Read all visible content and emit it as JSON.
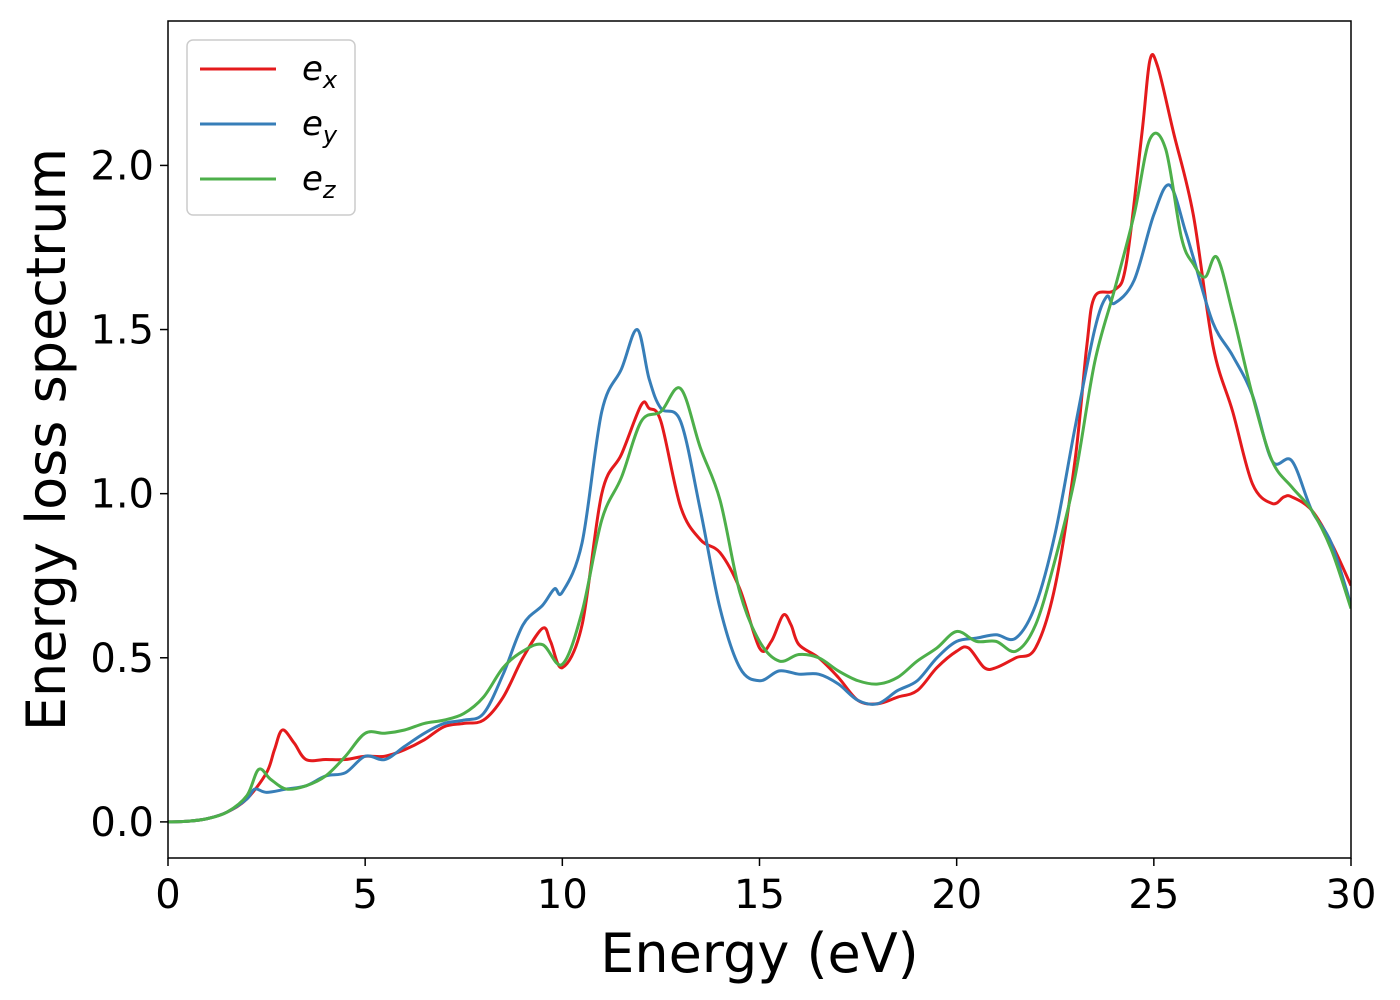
{
  "chart_data": {
    "type": "line",
    "xlabel": "Energy (eV)",
    "ylabel": "Energy loss spectrum",
    "xlim": [
      0,
      30
    ],
    "ylim": [
      -0.11,
      2.44
    ],
    "xticks": [
      0,
      5,
      10,
      15,
      20,
      25,
      30
    ],
    "xtick_labels": [
      "0",
      "5",
      "10",
      "15",
      "20",
      "25",
      "30"
    ],
    "yticks": [
      0.0,
      0.5,
      1.0,
      1.5,
      2.0
    ],
    "ytick_labels": [
      "0.0",
      "0.5",
      "1.0",
      "1.5",
      "2.0"
    ],
    "grid": false,
    "legend_position": "top-left",
    "series": [
      {
        "name": "e",
        "subscript": "x",
        "color": "#e41a1c",
        "x": [
          0,
          0.5,
          1,
          1.5,
          2,
          2.5,
          2.7,
          2.9,
          3.2,
          3.5,
          4,
          4.5,
          5,
          5.5,
          6,
          6.5,
          7,
          7.5,
          8,
          8.5,
          9,
          9.5,
          9.7,
          10,
          10.5,
          11,
          11.5,
          12,
          12.2,
          12.5,
          13,
          13.5,
          14,
          14.5,
          15,
          15.3,
          15.6,
          15.8,
          16,
          16.5,
          17,
          17.5,
          18,
          18.5,
          19,
          19.5,
          20,
          20.3,
          20.7,
          21,
          21.5,
          22,
          22.5,
          23,
          23.3,
          23.5,
          24,
          24.3,
          24.7,
          24.9,
          25.1,
          25.5,
          26,
          26.5,
          27,
          27.5,
          28,
          28.3,
          28.5,
          29,
          29.5,
          30
        ],
        "values": [
          0.0,
          0.002,
          0.01,
          0.03,
          0.07,
          0.15,
          0.22,
          0.28,
          0.24,
          0.19,
          0.19,
          0.19,
          0.2,
          0.2,
          0.22,
          0.25,
          0.29,
          0.3,
          0.31,
          0.38,
          0.5,
          0.59,
          0.55,
          0.47,
          0.6,
          1.0,
          1.12,
          1.27,
          1.26,
          1.22,
          0.96,
          0.86,
          0.82,
          0.71,
          0.53,
          0.55,
          0.63,
          0.6,
          0.54,
          0.5,
          0.44,
          0.37,
          0.36,
          0.38,
          0.4,
          0.47,
          0.52,
          0.53,
          0.47,
          0.47,
          0.5,
          0.53,
          0.72,
          1.1,
          1.45,
          1.6,
          1.62,
          1.7,
          2.1,
          2.32,
          2.3,
          2.1,
          1.85,
          1.45,
          1.25,
          1.03,
          0.97,
          0.99,
          0.99,
          0.95,
          0.85,
          0.72
        ]
      },
      {
        "name": "e",
        "subscript": "y",
        "color": "#377eb8",
        "x": [
          0,
          0.5,
          1,
          1.5,
          2,
          2.2,
          2.5,
          3,
          3.5,
          4,
          4.5,
          5,
          5.5,
          6,
          6.5,
          7,
          7.5,
          8,
          8.5,
          9,
          9.5,
          9.8,
          10,
          10.5,
          11,
          11.5,
          11.9,
          12.2,
          12.5,
          13,
          13.5,
          14,
          14.5,
          15,
          15.5,
          16,
          16.5,
          17,
          17.5,
          18,
          18.5,
          19,
          19.5,
          20,
          20.5,
          21,
          21.5,
          22,
          22.5,
          23,
          23.5,
          23.8,
          24,
          24.5,
          25,
          25.4,
          25.8,
          26,
          26.5,
          27,
          27.5,
          28,
          28.5,
          29,
          29.5,
          30
        ],
        "values": [
          0.0,
          0.002,
          0.01,
          0.03,
          0.07,
          0.1,
          0.09,
          0.1,
          0.11,
          0.14,
          0.15,
          0.2,
          0.19,
          0.23,
          0.27,
          0.3,
          0.31,
          0.33,
          0.45,
          0.6,
          0.66,
          0.71,
          0.7,
          0.85,
          1.25,
          1.38,
          1.5,
          1.35,
          1.26,
          1.22,
          0.95,
          0.65,
          0.47,
          0.43,
          0.46,
          0.45,
          0.45,
          0.42,
          0.37,
          0.36,
          0.4,
          0.43,
          0.5,
          0.55,
          0.56,
          0.57,
          0.56,
          0.66,
          0.88,
          1.2,
          1.5,
          1.6,
          1.58,
          1.65,
          1.85,
          1.94,
          1.8,
          1.72,
          1.52,
          1.42,
          1.3,
          1.1,
          1.1,
          0.95,
          0.85,
          0.66
        ]
      },
      {
        "name": "e",
        "subscript": "z",
        "color": "#4daf4a",
        "x": [
          0,
          0.5,
          1,
          1.5,
          2,
          2.3,
          2.6,
          3,
          3.5,
          4,
          4.5,
          5,
          5.5,
          6,
          6.5,
          7,
          7.5,
          8,
          8.5,
          9,
          9.5,
          10,
          10.5,
          11,
          11.5,
          12,
          12.5,
          13,
          13.5,
          14,
          14.5,
          15,
          15.5,
          16,
          16.5,
          17,
          17.5,
          18,
          18.5,
          19,
          19.5,
          20,
          20.5,
          21,
          21.5,
          22,
          22.5,
          23,
          23.5,
          24,
          24.5,
          24.9,
          25.3,
          25.7,
          26,
          26.3,
          26.6,
          27,
          27.5,
          28,
          28.5,
          29,
          29.5,
          30
        ],
        "values": [
          0.0,
          0.002,
          0.01,
          0.03,
          0.08,
          0.16,
          0.13,
          0.1,
          0.11,
          0.14,
          0.2,
          0.27,
          0.27,
          0.28,
          0.3,
          0.31,
          0.33,
          0.38,
          0.47,
          0.52,
          0.54,
          0.48,
          0.64,
          0.92,
          1.05,
          1.22,
          1.25,
          1.32,
          1.14,
          0.98,
          0.7,
          0.55,
          0.49,
          0.51,
          0.5,
          0.46,
          0.43,
          0.42,
          0.44,
          0.49,
          0.53,
          0.58,
          0.55,
          0.55,
          0.52,
          0.6,
          0.8,
          1.05,
          1.4,
          1.62,
          1.85,
          2.08,
          2.05,
          1.78,
          1.7,
          1.66,
          1.72,
          1.55,
          1.3,
          1.1,
          1.02,
          0.95,
          0.83,
          0.65
        ]
      }
    ]
  }
}
